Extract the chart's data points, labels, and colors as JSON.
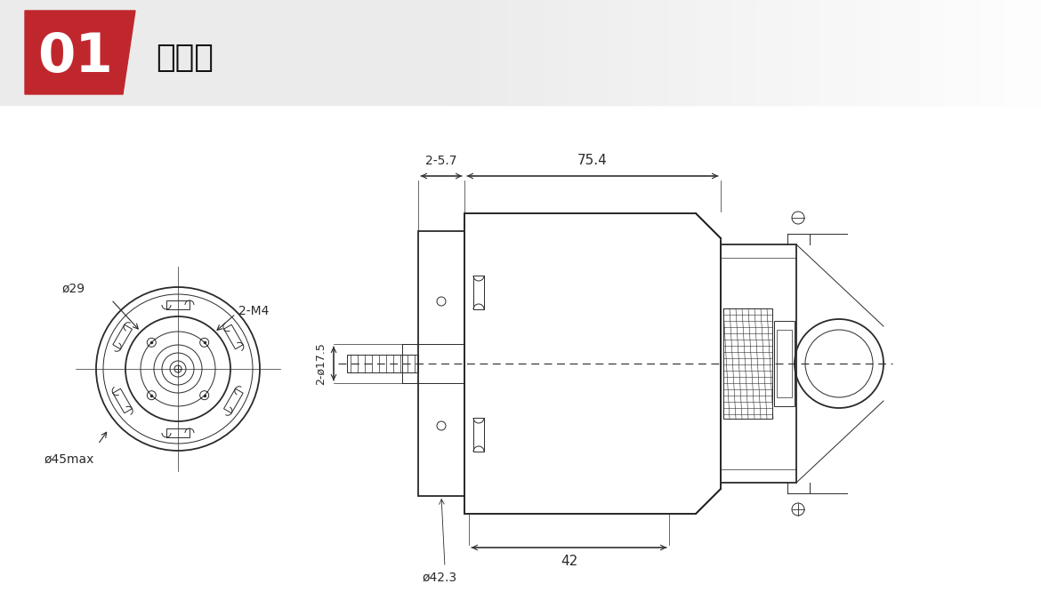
{
  "red_color": "#c0272d",
  "line_color": "#2a2a2a",
  "dim_color": "#2a2a2a",
  "header_gray": "#ebebeb",
  "annotations": {
    "phi29": "ø29",
    "phi45max": "ø45max",
    "two_m4": "2-M4",
    "dim_2_57": "2-5.7",
    "dim_754": "75.4",
    "dim_175": "2-ø17.5",
    "dim_423": "ø42.3",
    "dim_42": "42"
  }
}
